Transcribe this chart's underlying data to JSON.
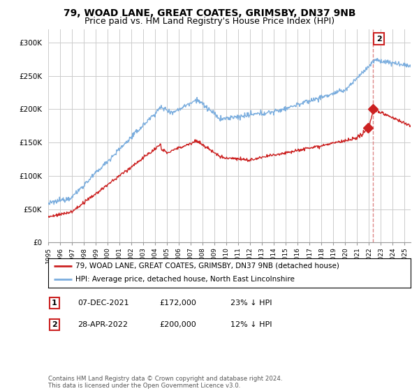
{
  "title": "79, WOAD LANE, GREAT COATES, GRIMSBY, DN37 9NB",
  "subtitle": "Price paid vs. HM Land Registry's House Price Index (HPI)",
  "ylim": [
    0,
    320000
  ],
  "yticks": [
    0,
    50000,
    100000,
    150000,
    200000,
    250000,
    300000
  ],
  "ytick_labels": [
    "£0",
    "£50K",
    "£100K",
    "£150K",
    "£200K",
    "£250K",
    "£300K"
  ],
  "hpi_color": "#7aadde",
  "price_color": "#cc2222",
  "dashed_color": "#dd8888",
  "background_color": "#ffffff",
  "grid_color": "#cccccc",
  "annotation1_label": "1",
  "annotation1_date": "07-DEC-2021",
  "annotation1_price": "£172,000",
  "annotation1_hpi": "23% ↓ HPI",
  "annotation2_label": "2",
  "annotation2_date": "28-APR-2022",
  "annotation2_price": "£200,000",
  "annotation2_hpi": "12% ↓ HPI",
  "footer": "Contains HM Land Registry data © Crown copyright and database right 2024.\nThis data is licensed under the Open Government Licence v3.0.",
  "legend_line1": "79, WOAD LANE, GREAT COATES, GRIMSBY, DN37 9NB (detached house)",
  "legend_line2": "HPI: Average price, detached house, North East Lincolnshire",
  "sale1_x": 2021.92,
  "sale1_y": 172000,
  "sale2_x": 2022.33,
  "sale2_y": 200000,
  "xmin": 1995,
  "xmax": 2025.5,
  "title_fontsize": 10,
  "subtitle_fontsize": 9,
  "tick_fontsize": 7.5
}
